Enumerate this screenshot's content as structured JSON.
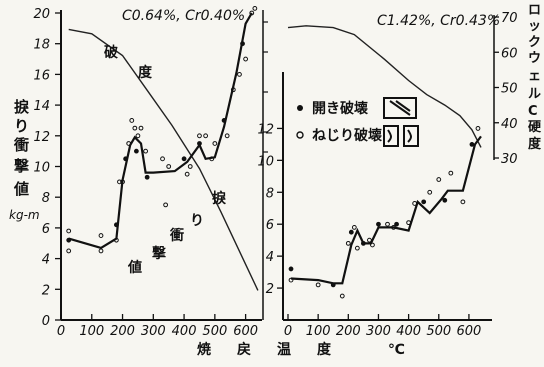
{
  "chart_data": [
    {
      "id": "left",
      "type": "line",
      "title": "C0.64%, Cr0.40%",
      "xlabel": "焼戻温度 ℃",
      "ylabel": "捩り衝撃値",
      "yunit": "kg-m",
      "xlim": [
        0,
        650
      ],
      "ylim": [
        0,
        20
      ],
      "x_ticks": [
        "0",
        "100",
        "200",
        "300",
        "400",
        "500",
        "600"
      ],
      "y_ticks": [
        "0",
        "2",
        "4",
        "6",
        "8",
        "10",
        "12",
        "14",
        "16",
        "18",
        "20"
      ],
      "curve_labels": {
        "hardness_upper": "破",
        "hardness_lower": "度",
        "torsion_1": "捩",
        "torsion_2": "り",
        "torsion_3": "衝",
        "torsion_4": "撃",
        "torsion_5": "値"
      },
      "series": [
        {
          "role": "hardness",
          "axis": "right",
          "x": [
            25,
            100,
            200,
            280,
            360,
            450,
            520,
            560,
            600,
            640
          ],
          "y": [
            68,
            67.5,
            65,
            61,
            57,
            52,
            47,
            44,
            41,
            38
          ]
        },
        {
          "role": "torsion_impact",
          "x": [
            25,
            130,
            180,
            200,
            225,
            240,
            260,
            275,
            300,
            370,
            410,
            450,
            470,
            500,
            530,
            570,
            600,
            620
          ],
          "y": [
            5.3,
            4.7,
            5.3,
            9.1,
            11.4,
            11.9,
            11.5,
            9.6,
            9.6,
            9.7,
            10.3,
            11.4,
            10.5,
            10.6,
            12.6,
            16.1,
            19.3,
            20
          ]
        },
        {
          "role": "data_points",
          "x": [
            25,
            25,
            25,
            130,
            130,
            180,
            180,
            190,
            200,
            210,
            220,
            230,
            240,
            245,
            250,
            260,
            275,
            280,
            330,
            340,
            350,
            400,
            410,
            420,
            450,
            450,
            470,
            490,
            500,
            530,
            540,
            560,
            580,
            590,
            600,
            620,
            630
          ],
          "y": [
            5.8,
            5.2,
            4.5,
            5.5,
            4.5,
            6.2,
            5.2,
            9.0,
            9.0,
            10.5,
            11.5,
            13.0,
            12.5,
            11.0,
            12.0,
            12.5,
            11.0,
            9.3,
            10.5,
            7.5,
            10.0,
            10.5,
            9.5,
            10.0,
            12.0,
            11.5,
            12.0,
            10.5,
            11.5,
            13.0,
            12.0,
            15.0,
            16.0,
            18.0,
            17.0,
            20.0,
            20.3
          ]
        }
      ]
    },
    {
      "id": "right",
      "type": "line",
      "title": "C1.42%, Cr0.43%",
      "xlim": [
        0,
        650
      ],
      "ylim": [
        0,
        14
      ],
      "x_ticks": [
        "0",
        "100",
        "200",
        "300",
        "400",
        "500",
        "600"
      ],
      "y_ticks": [
        "2",
        "4",
        "6",
        "8",
        "10",
        "12"
      ],
      "hardness_axis": {
        "label": "ロックウェルC硬度",
        "ticks": [
          "30",
          "40",
          "50",
          "60",
          "70"
        ],
        "range": [
          30,
          70
        ]
      },
      "legend": [
        {
          "marker": "filled",
          "label": "開き破壊"
        },
        {
          "marker": "open",
          "label": "ねじり破壊"
        }
      ],
      "series": [
        {
          "role": "hardness",
          "axis": "right",
          "x": [
            0,
            60,
            150,
            220,
            320,
            400,
            460,
            520,
            570,
            610,
            640
          ],
          "y": [
            67,
            67.5,
            67,
            65,
            58,
            52,
            48,
            45,
            42,
            38,
            33
          ]
        },
        {
          "role": "torsion_impact",
          "x": [
            10,
            100,
            150,
            180,
            210,
            230,
            250,
            275,
            300,
            350,
            400,
            430,
            470,
            510,
            530,
            580,
            620,
            640
          ],
          "y": [
            2.6,
            2.5,
            2.3,
            2.3,
            4.7,
            5.6,
            4.8,
            4.8,
            5.8,
            5.8,
            5.6,
            7.4,
            6.7,
            7.6,
            8.1,
            8.1,
            11.0,
            11.5
          ]
        },
        {
          "role": "data_points",
          "x": [
            10,
            10,
            100,
            150,
            180,
            200,
            210,
            220,
            230,
            250,
            270,
            280,
            300,
            330,
            350,
            360,
            400,
            420,
            450,
            470,
            500,
            520,
            540,
            580,
            610,
            630
          ],
          "y": [
            3.2,
            2.5,
            2.2,
            2.2,
            1.5,
            4.8,
            5.5,
            5.8,
            4.5,
            4.8,
            5.0,
            4.7,
            6.0,
            6.0,
            5.8,
            6.0,
            6.1,
            7.3,
            7.4,
            8.0,
            8.8,
            7.5,
            9.2,
            7.4,
            11.0,
            12.0
          ]
        }
      ]
    }
  ]
}
